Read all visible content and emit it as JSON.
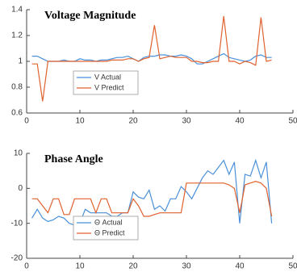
{
  "chart_data": [
    {
      "type": "line",
      "title": "Voltage Magnitude",
      "x": [
        1,
        2,
        3,
        4,
        5,
        6,
        7,
        8,
        9,
        10,
        11,
        12,
        13,
        14,
        15,
        16,
        17,
        18,
        19,
        20,
        21,
        22,
        23,
        24,
        25,
        26,
        27,
        28,
        29,
        30,
        31,
        32,
        33,
        34,
        35,
        36,
        37,
        38,
        39,
        40,
        41,
        42,
        43,
        44,
        45,
        46
      ],
      "series": [
        {
          "name": "V Actual",
          "color": "#4a90d9",
          "values": [
            1.04,
            1.04,
            1.02,
            1.0,
            1.0,
            1.0,
            1.01,
            1.0,
            1.0,
            1.02,
            1.01,
            1.01,
            1.0,
            1.01,
            1.01,
            1.02,
            1.03,
            1.03,
            1.04,
            1.02,
            1.0,
            1.03,
            1.04,
            1.04,
            1.05,
            1.05,
            1.04,
            1.04,
            1.05,
            1.04,
            1.02,
            0.98,
            0.98,
            1.0,
            1.02,
            1.04,
            1.06,
            1.03,
            1.02,
            1.01,
            1.0,
            1.01,
            1.04,
            1.05,
            1.03,
            1.03
          ]
        },
        {
          "name": "V Predict",
          "color": "#e0622f",
          "values": [
            0.98,
            0.98,
            0.69,
            1.0,
            1.0,
            1.0,
            1.0,
            1.0,
            1.0,
            1.0,
            1.0,
            1.0,
            1.0,
            1.0,
            1.0,
            1.01,
            1.01,
            1.01,
            1.02,
            1.02,
            1.0,
            1.02,
            1.03,
            1.28,
            1.02,
            1.03,
            1.04,
            1.03,
            1.03,
            1.03,
            1.0,
            1.0,
            0.99,
            0.99,
            1.0,
            1.0,
            1.35,
            1.0,
            1.0,
            0.98,
            1.0,
            0.99,
            0.97,
            1.34,
            1.0,
            1.01
          ]
        }
      ],
      "xlim": [
        0,
        50
      ],
      "xticks": [
        0,
        10,
        20,
        30,
        40,
        50
      ],
      "ylim": [
        0.6,
        1.4
      ],
      "yticks": [
        0.6,
        0.8,
        1,
        1.2,
        1.4
      ],
      "legend": "lower left"
    },
    {
      "type": "line",
      "title": "Phase Angle",
      "x": [
        1,
        2,
        3,
        4,
        5,
        6,
        7,
        8,
        9,
        10,
        11,
        12,
        13,
        14,
        15,
        16,
        17,
        18,
        19,
        20,
        21,
        22,
        23,
        24,
        25,
        26,
        27,
        28,
        29,
        30,
        31,
        32,
        33,
        34,
        35,
        36,
        37,
        38,
        39,
        40,
        41,
        42,
        43,
        44,
        45,
        46
      ],
      "series": [
        {
          "name": "Θ Actual",
          "color": "#4a90d9",
          "values": [
            -8.5,
            -6,
            -8.5,
            -9.5,
            -9,
            -8,
            -8.5,
            -10,
            -10.5,
            -10,
            -6,
            -7,
            -7,
            -7,
            -7,
            -8,
            -8,
            -7,
            -7,
            -1,
            -2.5,
            -3,
            -0.5,
            -6,
            -5,
            -6.5,
            -3,
            -3,
            0.5,
            -1,
            -3,
            0,
            3,
            5,
            4,
            6,
            8,
            4,
            7.5,
            -10,
            4,
            3.5,
            8,
            3,
            7.5,
            -10
          ]
        },
        {
          "name": "Θ Predict",
          "color": "#e0622f",
          "values": [
            -3,
            -3,
            -5,
            -7,
            -3,
            -3,
            -7.5,
            -7.5,
            -3,
            -3,
            -3,
            -3,
            -7,
            -3,
            -3,
            -7,
            -7,
            -7,
            -7,
            -3,
            -5,
            -8,
            -8,
            -7.5,
            -7,
            -7,
            -7,
            -7,
            -7,
            1.5,
            1.5,
            1.5,
            1.5,
            1.5,
            1.5,
            1.5,
            1.5,
            1,
            0,
            -7,
            1,
            1.5,
            2,
            1.5,
            0,
            -8
          ]
        }
      ],
      "xlim": [
        0,
        50
      ],
      "xticks": [
        0,
        10,
        20,
        30,
        40,
        50
      ],
      "ylim": [
        -20,
        10
      ],
      "yticks": [
        -20,
        -10,
        0,
        10
      ],
      "legend": "lower left"
    }
  ]
}
